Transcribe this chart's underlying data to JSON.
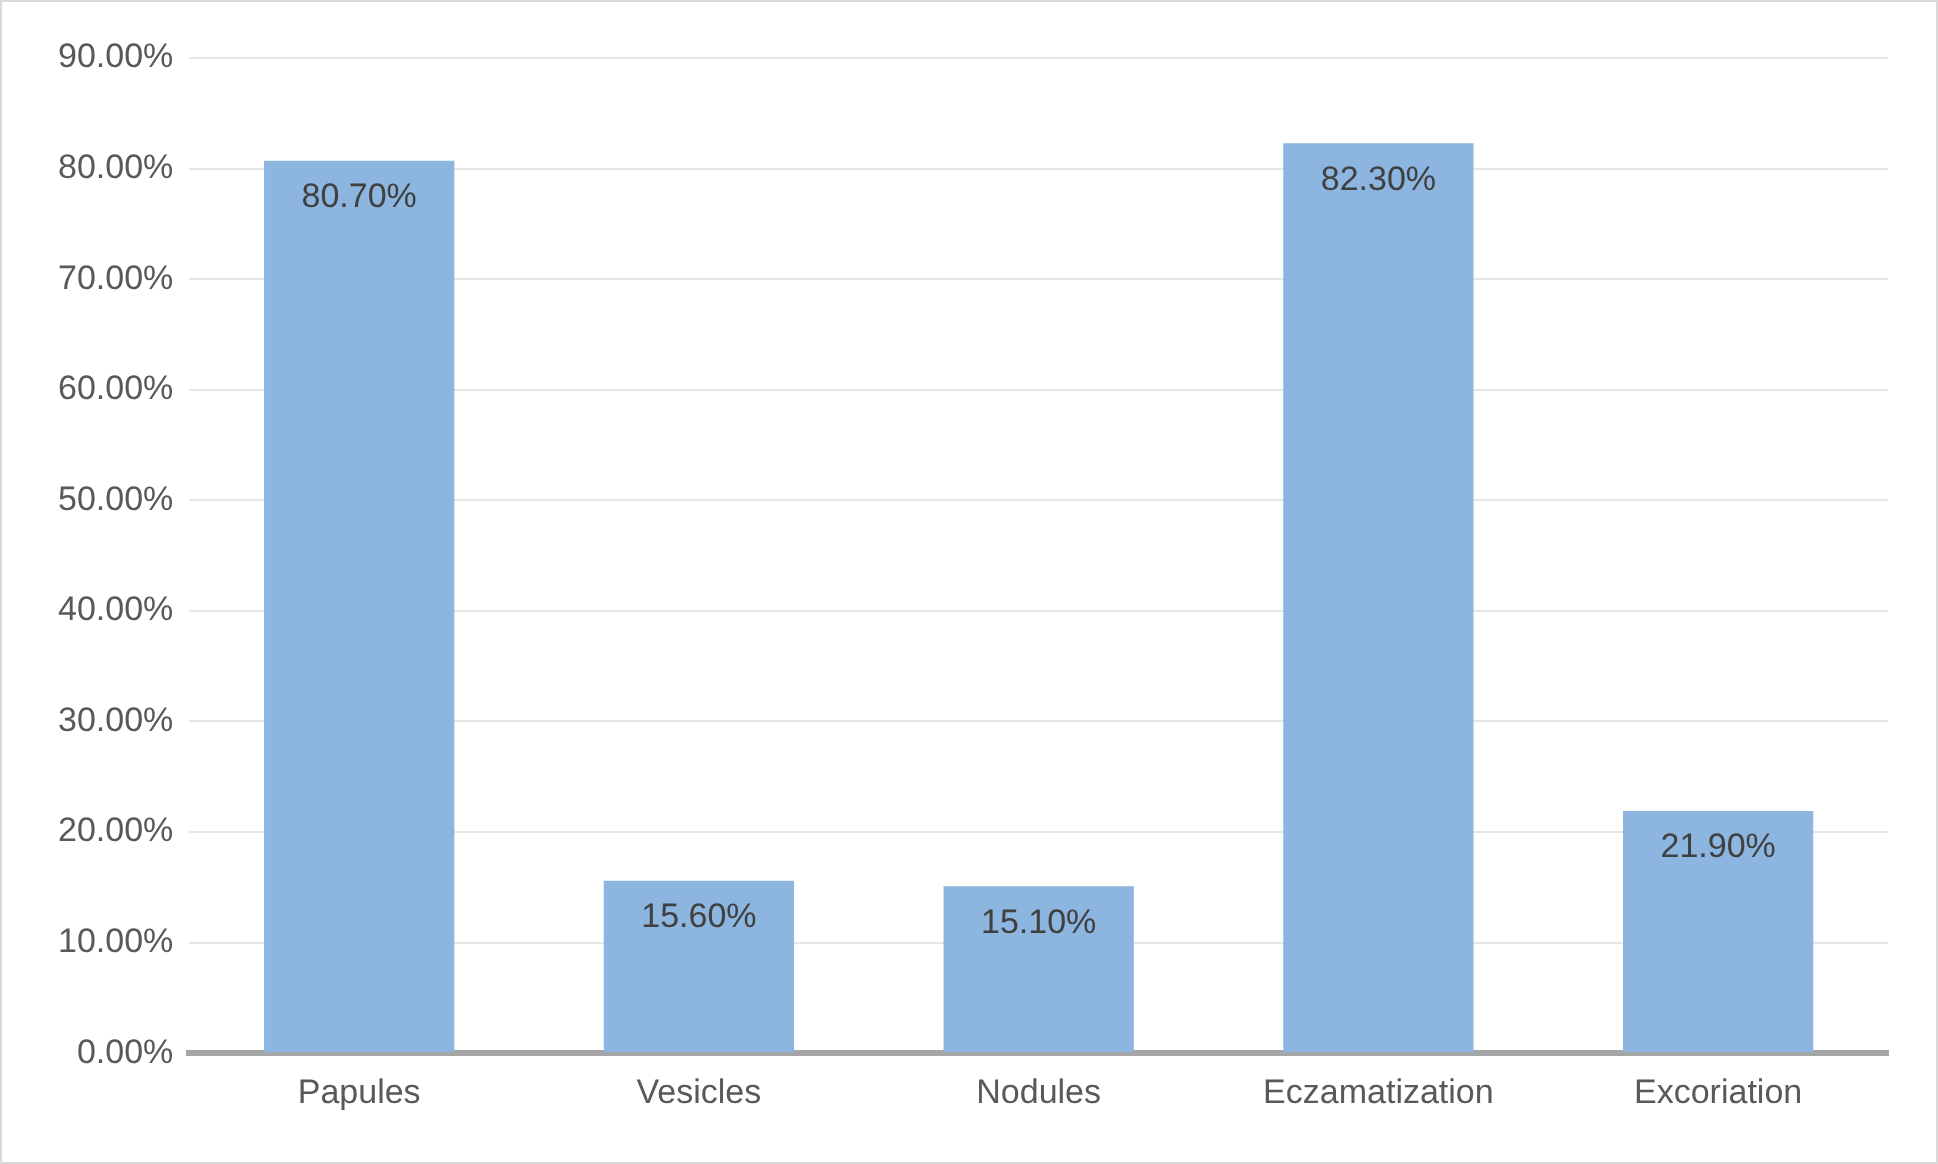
{
  "chart_data": {
    "type": "bar",
    "categories": [
      "Papules",
      "Vesicles",
      "Nodules",
      "Eczamatization",
      "Excoriation"
    ],
    "values": [
      80.7,
      15.6,
      15.1,
      82.3,
      21.9
    ],
    "value_labels": [
      "80.70%",
      "15.60%",
      "15.10%",
      "82.30%",
      "21.90%"
    ],
    "color": "#8cb6e0",
    "ylim": [
      0,
      90
    ],
    "yticks": [
      {
        "value": 0,
        "label": "0.00%"
      },
      {
        "value": 10,
        "label": "10.00%"
      },
      {
        "value": 20,
        "label": "20.00%"
      },
      {
        "value": 30,
        "label": "30.00%"
      },
      {
        "value": 40,
        "label": "40.00%"
      },
      {
        "value": 50,
        "label": "50.00%"
      },
      {
        "value": 60,
        "label": "60.00%"
      },
      {
        "value": 70,
        "label": "70.00%"
      },
      {
        "value": 80,
        "label": "80.00%"
      },
      {
        "value": 90,
        "label": "90.00%"
      }
    ],
    "grid": "y"
  }
}
